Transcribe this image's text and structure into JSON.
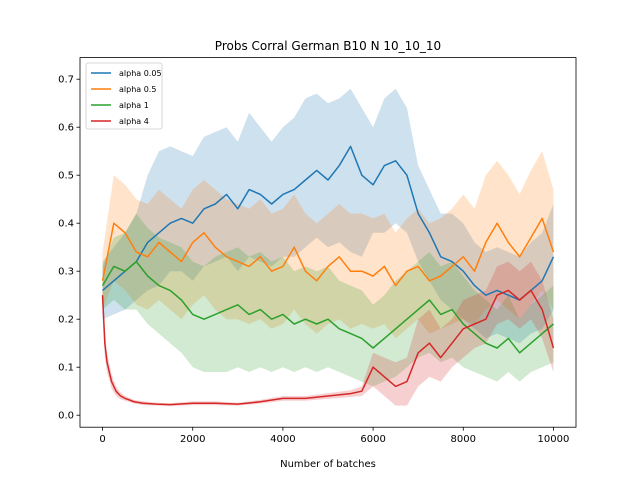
{
  "chart_data": {
    "type": "line",
    "title": "Probs Corral German B10 N 10_10_10",
    "xlabel": "Number of batches",
    "ylabel": "",
    "xlim": [
      -500,
      10500
    ],
    "ylim": [
      -0.025,
      0.745
    ],
    "xticks": [
      0,
      2000,
      4000,
      6000,
      8000,
      10000
    ],
    "xtick_labels": [
      "0",
      "2000",
      "4000",
      "6000",
      "8000",
      "10000"
    ],
    "yticks": [
      0.0,
      0.1,
      0.2,
      0.3,
      0.4,
      0.5,
      0.6,
      0.7
    ],
    "ytick_labels": [
      "0.0",
      "0.1",
      "0.2",
      "0.3",
      "0.4",
      "0.5",
      "0.6",
      "0.7"
    ],
    "legend_position": "top-left",
    "grid": false,
    "series": [
      {
        "name": "alpha 0.05",
        "color": "#1f77b4",
        "x": [
          0,
          250,
          500,
          750,
          1000,
          1250,
          1500,
          1750,
          2000,
          2250,
          2500,
          2750,
          3000,
          3250,
          3500,
          3750,
          4000,
          4250,
          4500,
          4750,
          5000,
          5250,
          5500,
          5750,
          6000,
          6250,
          6500,
          6750,
          7000,
          7250,
          7500,
          7750,
          8000,
          8250,
          8500,
          8750,
          9000,
          9250,
          9500,
          9750,
          10000
        ],
        "y": [
          0.26,
          0.28,
          0.3,
          0.32,
          0.36,
          0.38,
          0.4,
          0.41,
          0.4,
          0.43,
          0.44,
          0.46,
          0.43,
          0.47,
          0.46,
          0.44,
          0.46,
          0.47,
          0.49,
          0.51,
          0.49,
          0.52,
          0.56,
          0.5,
          0.48,
          0.52,
          0.53,
          0.5,
          0.42,
          0.38,
          0.33,
          0.32,
          0.3,
          0.27,
          0.25,
          0.26,
          0.25,
          0.24,
          0.26,
          0.28,
          0.33
        ],
        "lower": [
          0.2,
          0.21,
          0.22,
          0.24,
          0.26,
          0.27,
          0.3,
          0.3,
          0.28,
          0.31,
          0.32,
          0.33,
          0.3,
          0.33,
          0.32,
          0.31,
          0.33,
          0.33,
          0.35,
          0.37,
          0.35,
          0.36,
          0.34,
          0.33,
          0.38,
          0.38,
          0.4,
          0.38,
          0.32,
          0.28,
          0.24,
          0.22,
          0.2,
          0.18,
          0.16,
          0.17,
          0.16,
          0.15,
          0.17,
          0.18,
          0.22
        ],
        "upper": [
          0.32,
          0.35,
          0.38,
          0.42,
          0.5,
          0.55,
          0.56,
          0.55,
          0.54,
          0.58,
          0.59,
          0.6,
          0.57,
          0.63,
          0.6,
          0.57,
          0.6,
          0.62,
          0.66,
          0.67,
          0.65,
          0.66,
          0.68,
          0.64,
          0.6,
          0.66,
          0.68,
          0.64,
          0.52,
          0.47,
          0.42,
          0.42,
          0.4,
          0.36,
          0.34,
          0.35,
          0.34,
          0.33,
          0.36,
          0.38,
          0.44
        ]
      },
      {
        "name": "alpha 0.5",
        "color": "#ff7f0e",
        "x": [
          0,
          250,
          500,
          750,
          1000,
          1250,
          1500,
          1750,
          2000,
          2250,
          2500,
          2750,
          3000,
          3250,
          3500,
          3750,
          4000,
          4250,
          4500,
          4750,
          5000,
          5250,
          5500,
          5750,
          6000,
          6250,
          6500,
          6750,
          7000,
          7250,
          7500,
          7750,
          8000,
          8250,
          8500,
          8750,
          9000,
          9250,
          9500,
          9750,
          10000
        ],
        "y": [
          0.28,
          0.4,
          0.38,
          0.34,
          0.33,
          0.36,
          0.34,
          0.32,
          0.36,
          0.38,
          0.35,
          0.33,
          0.32,
          0.31,
          0.33,
          0.3,
          0.31,
          0.35,
          0.3,
          0.28,
          0.31,
          0.33,
          0.3,
          0.3,
          0.29,
          0.31,
          0.27,
          0.3,
          0.31,
          0.28,
          0.29,
          0.31,
          0.33,
          0.3,
          0.36,
          0.4,
          0.36,
          0.33,
          0.37,
          0.41,
          0.34
        ],
        "lower": [
          0.22,
          0.28,
          0.26,
          0.23,
          0.22,
          0.24,
          0.22,
          0.2,
          0.23,
          0.25,
          0.22,
          0.2,
          0.2,
          0.19,
          0.2,
          0.18,
          0.19,
          0.22,
          0.19,
          0.17,
          0.19,
          0.2,
          0.18,
          0.19,
          0.18,
          0.19,
          0.16,
          0.18,
          0.2,
          0.17,
          0.18,
          0.19,
          0.2,
          0.19,
          0.22,
          0.24,
          0.22,
          0.2,
          0.23,
          0.26,
          0.22
        ],
        "upper": [
          0.34,
          0.5,
          0.48,
          0.45,
          0.44,
          0.47,
          0.45,
          0.43,
          0.47,
          0.49,
          0.47,
          0.45,
          0.44,
          0.43,
          0.45,
          0.42,
          0.43,
          0.46,
          0.42,
          0.4,
          0.42,
          0.44,
          0.42,
          0.42,
          0.41,
          0.42,
          0.38,
          0.41,
          0.43,
          0.4,
          0.41,
          0.43,
          0.46,
          0.43,
          0.5,
          0.53,
          0.5,
          0.46,
          0.51,
          0.55,
          0.47
        ]
      },
      {
        "name": "alpha 1",
        "color": "#2ca02c",
        "x": [
          0,
          250,
          500,
          750,
          1000,
          1250,
          1500,
          1750,
          2000,
          2250,
          2500,
          2750,
          3000,
          3250,
          3500,
          3750,
          4000,
          4250,
          4500,
          4750,
          5000,
          5250,
          5500,
          5750,
          6000,
          6250,
          6500,
          6750,
          7000,
          7250,
          7500,
          7750,
          8000,
          8250,
          8500,
          8750,
          9000,
          9250,
          9500,
          9750,
          10000
        ],
        "y": [
          0.27,
          0.31,
          0.3,
          0.32,
          0.29,
          0.27,
          0.26,
          0.24,
          0.21,
          0.2,
          0.21,
          0.22,
          0.23,
          0.21,
          0.22,
          0.2,
          0.21,
          0.19,
          0.2,
          0.19,
          0.2,
          0.18,
          0.17,
          0.16,
          0.14,
          0.16,
          0.18,
          0.2,
          0.22,
          0.24,
          0.21,
          0.22,
          0.19,
          0.17,
          0.15,
          0.14,
          0.16,
          0.13,
          0.15,
          0.17,
          0.19
        ],
        "lower": [
          0.22,
          0.24,
          0.22,
          0.22,
          0.19,
          0.17,
          0.15,
          0.13,
          0.1,
          0.09,
          0.09,
          0.09,
          0.1,
          0.09,
          0.1,
          0.09,
          0.1,
          0.09,
          0.1,
          0.09,
          0.1,
          0.09,
          0.08,
          0.07,
          0.06,
          0.07,
          0.08,
          0.1,
          0.12,
          0.13,
          0.11,
          0.12,
          0.1,
          0.09,
          0.08,
          0.07,
          0.09,
          0.07,
          0.09,
          0.1,
          0.11
        ],
        "upper": [
          0.31,
          0.37,
          0.38,
          0.42,
          0.39,
          0.37,
          0.36,
          0.35,
          0.32,
          0.31,
          0.33,
          0.34,
          0.35,
          0.33,
          0.34,
          0.32,
          0.33,
          0.3,
          0.31,
          0.3,
          0.31,
          0.28,
          0.27,
          0.26,
          0.23,
          0.25,
          0.28,
          0.3,
          0.32,
          0.34,
          0.31,
          0.32,
          0.29,
          0.26,
          0.24,
          0.22,
          0.25,
          0.2,
          0.23,
          0.25,
          0.27
        ]
      },
      {
        "name": "alpha 4",
        "color": "#d62728",
        "x": [
          0,
          50,
          100,
          200,
          300,
          400,
          500,
          700,
          900,
          1200,
          1500,
          2000,
          2500,
          3000,
          3500,
          4000,
          4500,
          5000,
          5500,
          5750,
          6000,
          6250,
          6500,
          6750,
          7000,
          7250,
          7500,
          7750,
          8000,
          8250,
          8500,
          8750,
          9000,
          9250,
          9500,
          9750,
          10000
        ],
        "y": [
          0.25,
          0.15,
          0.11,
          0.07,
          0.05,
          0.04,
          0.035,
          0.028,
          0.025,
          0.023,
          0.022,
          0.025,
          0.025,
          0.023,
          0.028,
          0.035,
          0.035,
          0.04,
          0.045,
          0.05,
          0.1,
          0.08,
          0.06,
          0.07,
          0.13,
          0.15,
          0.12,
          0.15,
          0.18,
          0.19,
          0.2,
          0.25,
          0.26,
          0.24,
          0.26,
          0.22,
          0.14
        ],
        "lower": [
          0.22,
          0.12,
          0.09,
          0.055,
          0.04,
          0.033,
          0.03,
          0.024,
          0.021,
          0.02,
          0.019,
          0.021,
          0.021,
          0.02,
          0.024,
          0.03,
          0.03,
          0.034,
          0.038,
          0.04,
          0.06,
          0.04,
          0.02,
          0.02,
          0.06,
          0.08,
          0.07,
          0.1,
          0.12,
          0.14,
          0.15,
          0.19,
          0.2,
          0.18,
          0.2,
          0.16,
          0.09
        ],
        "upper": [
          0.27,
          0.18,
          0.13,
          0.085,
          0.06,
          0.047,
          0.04,
          0.032,
          0.029,
          0.026,
          0.025,
          0.029,
          0.029,
          0.026,
          0.032,
          0.04,
          0.04,
          0.046,
          0.052,
          0.06,
          0.13,
          0.12,
          0.11,
          0.12,
          0.2,
          0.22,
          0.18,
          0.2,
          0.24,
          0.25,
          0.26,
          0.31,
          0.32,
          0.3,
          0.32,
          0.28,
          0.2
        ]
      }
    ]
  }
}
